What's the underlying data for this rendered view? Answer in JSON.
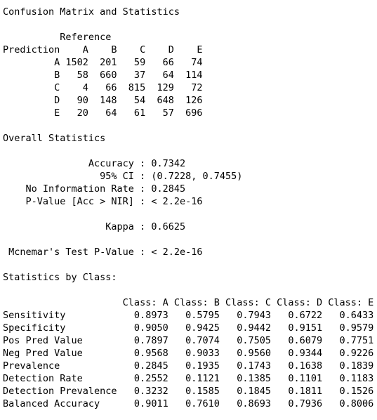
{
  "console": {
    "lines": [
      "Confusion Matrix and Statistics",
      "",
      "          Reference",
      "Prediction    A    B    C    D    E",
      "         A 1502  201   59   66   74",
      "         B   58  660   37   64  114",
      "         C    4   66  815  129   72",
      "         D   90  148   54  648  126",
      "         E   20   64   61   57  696",
      "",
      "Overall Statistics",
      "",
      "               Accuracy : 0.7342",
      "                 95% CI : (0.7228, 0.7455)",
      "    No Information Rate : 0.2845",
      "    P-Value [Acc > NIR] : < 2.2e-16",
      "",
      "                  Kappa : 0.6625",
      "",
      " Mcnemar's Test P-Value : < 2.2e-16",
      "",
      "Statistics by Class:",
      "",
      "                     Class: A Class: B Class: C Class: D Class: E",
      "Sensitivity            0.8973   0.5795   0.7943   0.6722   0.6433",
      "Specificity            0.9050   0.9425   0.9442   0.9151   0.9579",
      "Pos Pred Value         0.7897   0.7074   0.7505   0.6079   0.7751",
      "Neg Pred Value         0.9568   0.9033   0.9560   0.9344   0.9226",
      "Prevalence             0.2845   0.1935   0.1743   0.1638   0.1839",
      "Detection Rate         0.2552   0.1121   0.1385   0.1101   0.1183",
      "Detection Prevalence   0.3232   0.1585   0.1845   0.1811   0.1526",
      "Balanced Accuracy      0.9011   0.7610   0.8693   0.7936   0.8006"
    ]
  }
}
